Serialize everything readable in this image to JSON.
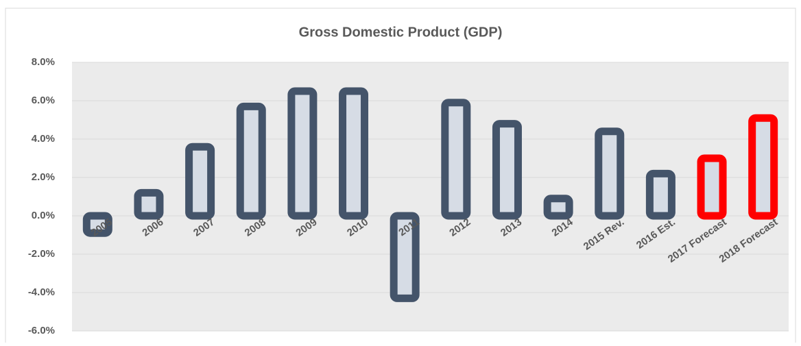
{
  "chart_data": {
    "type": "bar",
    "title": "Gross Domestic Product (GDP)",
    "categories": [
      "2005",
      "2006",
      "2007",
      "2008",
      "2009",
      "2010",
      "2011",
      "2012",
      "2013",
      "2014",
      "2015 Rev.",
      "2016 Est.",
      "2017 Forecast",
      "2018 Forecast"
    ],
    "values": [
      -0.9,
      1.2,
      3.6,
      5.7,
      6.5,
      6.5,
      -4.3,
      5.9,
      4.8,
      0.9,
      4.4,
      2.2,
      3.0,
      5.1
    ],
    "colors": [
      "#44546a",
      "#44546a",
      "#44546a",
      "#44546a",
      "#44546a",
      "#44546a",
      "#44546a",
      "#44546a",
      "#44546a",
      "#44546a",
      "#44546a",
      "#44546a",
      "#ff0000",
      "#ff0000"
    ],
    "fill": "#d6dce5",
    "ylim": [
      -6,
      8
    ],
    "yticks": [
      {
        "value": -6,
        "label": "-6.0%"
      },
      {
        "value": -4,
        "label": "-4.0%"
      },
      {
        "value": -2,
        "label": "-2.0%"
      },
      {
        "value": 0,
        "label": "0.0%"
      },
      {
        "value": 2,
        "label": "2.0%"
      },
      {
        "value": 4,
        "label": "4.0%"
      },
      {
        "value": 6,
        "label": "6.0%"
      },
      {
        "value": 8,
        "label": "8.0%"
      }
    ],
    "grid": true
  }
}
